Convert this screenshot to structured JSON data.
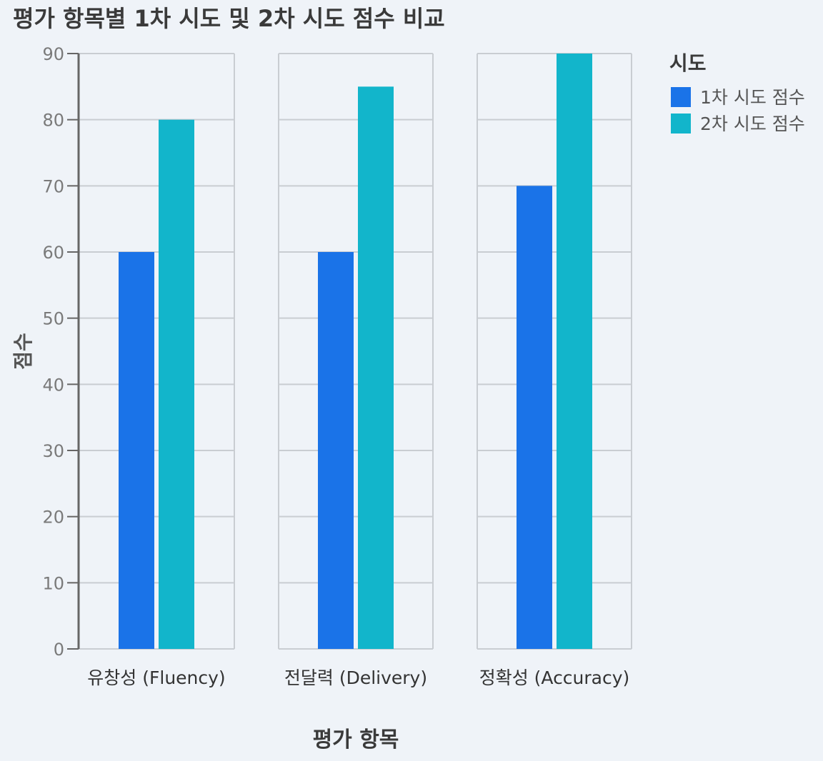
{
  "chart_data": {
    "type": "bar",
    "title": "평가 항목별 1차 시도 및 2차 시도 점수 비교",
    "xlabel": "평가 항목",
    "ylabel": "점수",
    "ylim": [
      0,
      90
    ],
    "yticks": [
      0,
      10,
      20,
      30,
      40,
      50,
      60,
      70,
      80,
      90
    ],
    "categories": [
      "유창성 (Fluency)",
      "전달력 (Delivery)",
      "정확성 (Accuracy)"
    ],
    "series": [
      {
        "name": "1차 시도 점수",
        "values": [
          60,
          60,
          70
        ],
        "color": "#1a73e8"
      },
      {
        "name": "2차 시도 점수",
        "values": [
          80,
          85,
          90
        ],
        "color": "#12b5cb"
      }
    ],
    "legend": {
      "title": "시도",
      "position": "right"
    },
    "grid": true
  }
}
